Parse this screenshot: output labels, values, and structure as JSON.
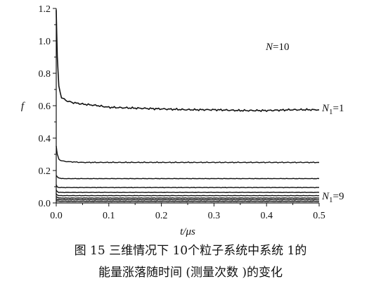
{
  "chart_data": {
    "type": "line",
    "xlabel": "t/μs",
    "ylabel": "f",
    "xlim": [
      0,
      0.5
    ],
    "ylim": [
      0,
      1.2
    ],
    "x_ticks": [
      "0.0",
      "0.1",
      "0.2",
      "0.3",
      "0.4",
      "0.5"
    ],
    "y_ticks": [
      "0.0",
      "0.2",
      "0.4",
      "0.6",
      "0.8",
      "1.0",
      "1.2"
    ],
    "grid": false,
    "annotations": [
      "N=10",
      "N1=1",
      "N1=9"
    ],
    "series": [
      {
        "label": "N1=1",
        "x": [
          0.0,
          0.002,
          0.005,
          0.01,
          0.02,
          0.03,
          0.05,
          0.08,
          0.1,
          0.15,
          0.2,
          0.25,
          0.3,
          0.35,
          0.4,
          0.45,
          0.5
        ],
        "values": [
          1.19,
          0.9,
          0.72,
          0.65,
          0.63,
          0.62,
          0.61,
          0.6,
          0.59,
          0.585,
          0.58,
          0.575,
          0.575,
          0.57,
          0.57,
          0.575,
          0.575
        ]
      },
      {
        "label": "",
        "x": [
          0.0,
          0.002,
          0.005,
          0.01,
          0.02,
          0.05,
          0.1,
          0.2,
          0.3,
          0.4,
          0.5
        ],
        "values": [
          0.35,
          0.3,
          0.27,
          0.26,
          0.255,
          0.25,
          0.25,
          0.25,
          0.25,
          0.25,
          0.25
        ]
      },
      {
        "label": "",
        "x": [
          0.0,
          0.002,
          0.005,
          0.01,
          0.02,
          0.05,
          0.1,
          0.2,
          0.3,
          0.4,
          0.5
        ],
        "values": [
          0.17,
          0.16,
          0.155,
          0.15,
          0.15,
          0.15,
          0.15,
          0.15,
          0.15,
          0.15,
          0.15
        ]
      },
      {
        "label": "",
        "x": [
          0.0,
          0.002,
          0.005,
          0.01,
          0.02,
          0.05,
          0.1,
          0.2,
          0.3,
          0.4,
          0.5
        ],
        "values": [
          0.11,
          0.1,
          0.095,
          0.095,
          0.095,
          0.095,
          0.095,
          0.095,
          0.095,
          0.095,
          0.095
        ]
      },
      {
        "label": "",
        "x": [
          0.0,
          0.002,
          0.005,
          0.01,
          0.05,
          0.1,
          0.2,
          0.3,
          0.4,
          0.5
        ],
        "values": [
          0.08,
          0.07,
          0.065,
          0.065,
          0.065,
          0.065,
          0.065,
          0.065,
          0.065,
          0.065
        ]
      },
      {
        "label": "",
        "x": [
          0.0,
          0.002,
          0.005,
          0.01,
          0.05,
          0.1,
          0.2,
          0.3,
          0.4,
          0.5
        ],
        "values": [
          0.055,
          0.05,
          0.045,
          0.045,
          0.045,
          0.045,
          0.045,
          0.045,
          0.045,
          0.045
        ]
      },
      {
        "label": "",
        "x": [
          0.0,
          0.002,
          0.005,
          0.01,
          0.05,
          0.1,
          0.2,
          0.3,
          0.4,
          0.5
        ],
        "values": [
          0.04,
          0.035,
          0.03,
          0.03,
          0.03,
          0.03,
          0.03,
          0.03,
          0.03,
          0.03
        ]
      },
      {
        "label": "",
        "x": [
          0.0,
          0.002,
          0.005,
          0.01,
          0.05,
          0.1,
          0.2,
          0.3,
          0.4,
          0.5
        ],
        "values": [
          0.025,
          0.022,
          0.02,
          0.02,
          0.02,
          0.02,
          0.02,
          0.02,
          0.02,
          0.02
        ]
      },
      {
        "label": "N1=9",
        "x": [
          0.0,
          0.002,
          0.005,
          0.01,
          0.05,
          0.1,
          0.2,
          0.3,
          0.4,
          0.5
        ],
        "values": [
          0.015,
          0.012,
          0.01,
          0.01,
          0.01,
          0.01,
          0.01,
          0.01,
          0.01,
          0.01
        ]
      }
    ]
  },
  "caption": {
    "line1": "图 15  三维情况下 10个粒子系统中系统 1的",
    "line2": "能量涨落随时间 (测量次数 )的变化"
  }
}
